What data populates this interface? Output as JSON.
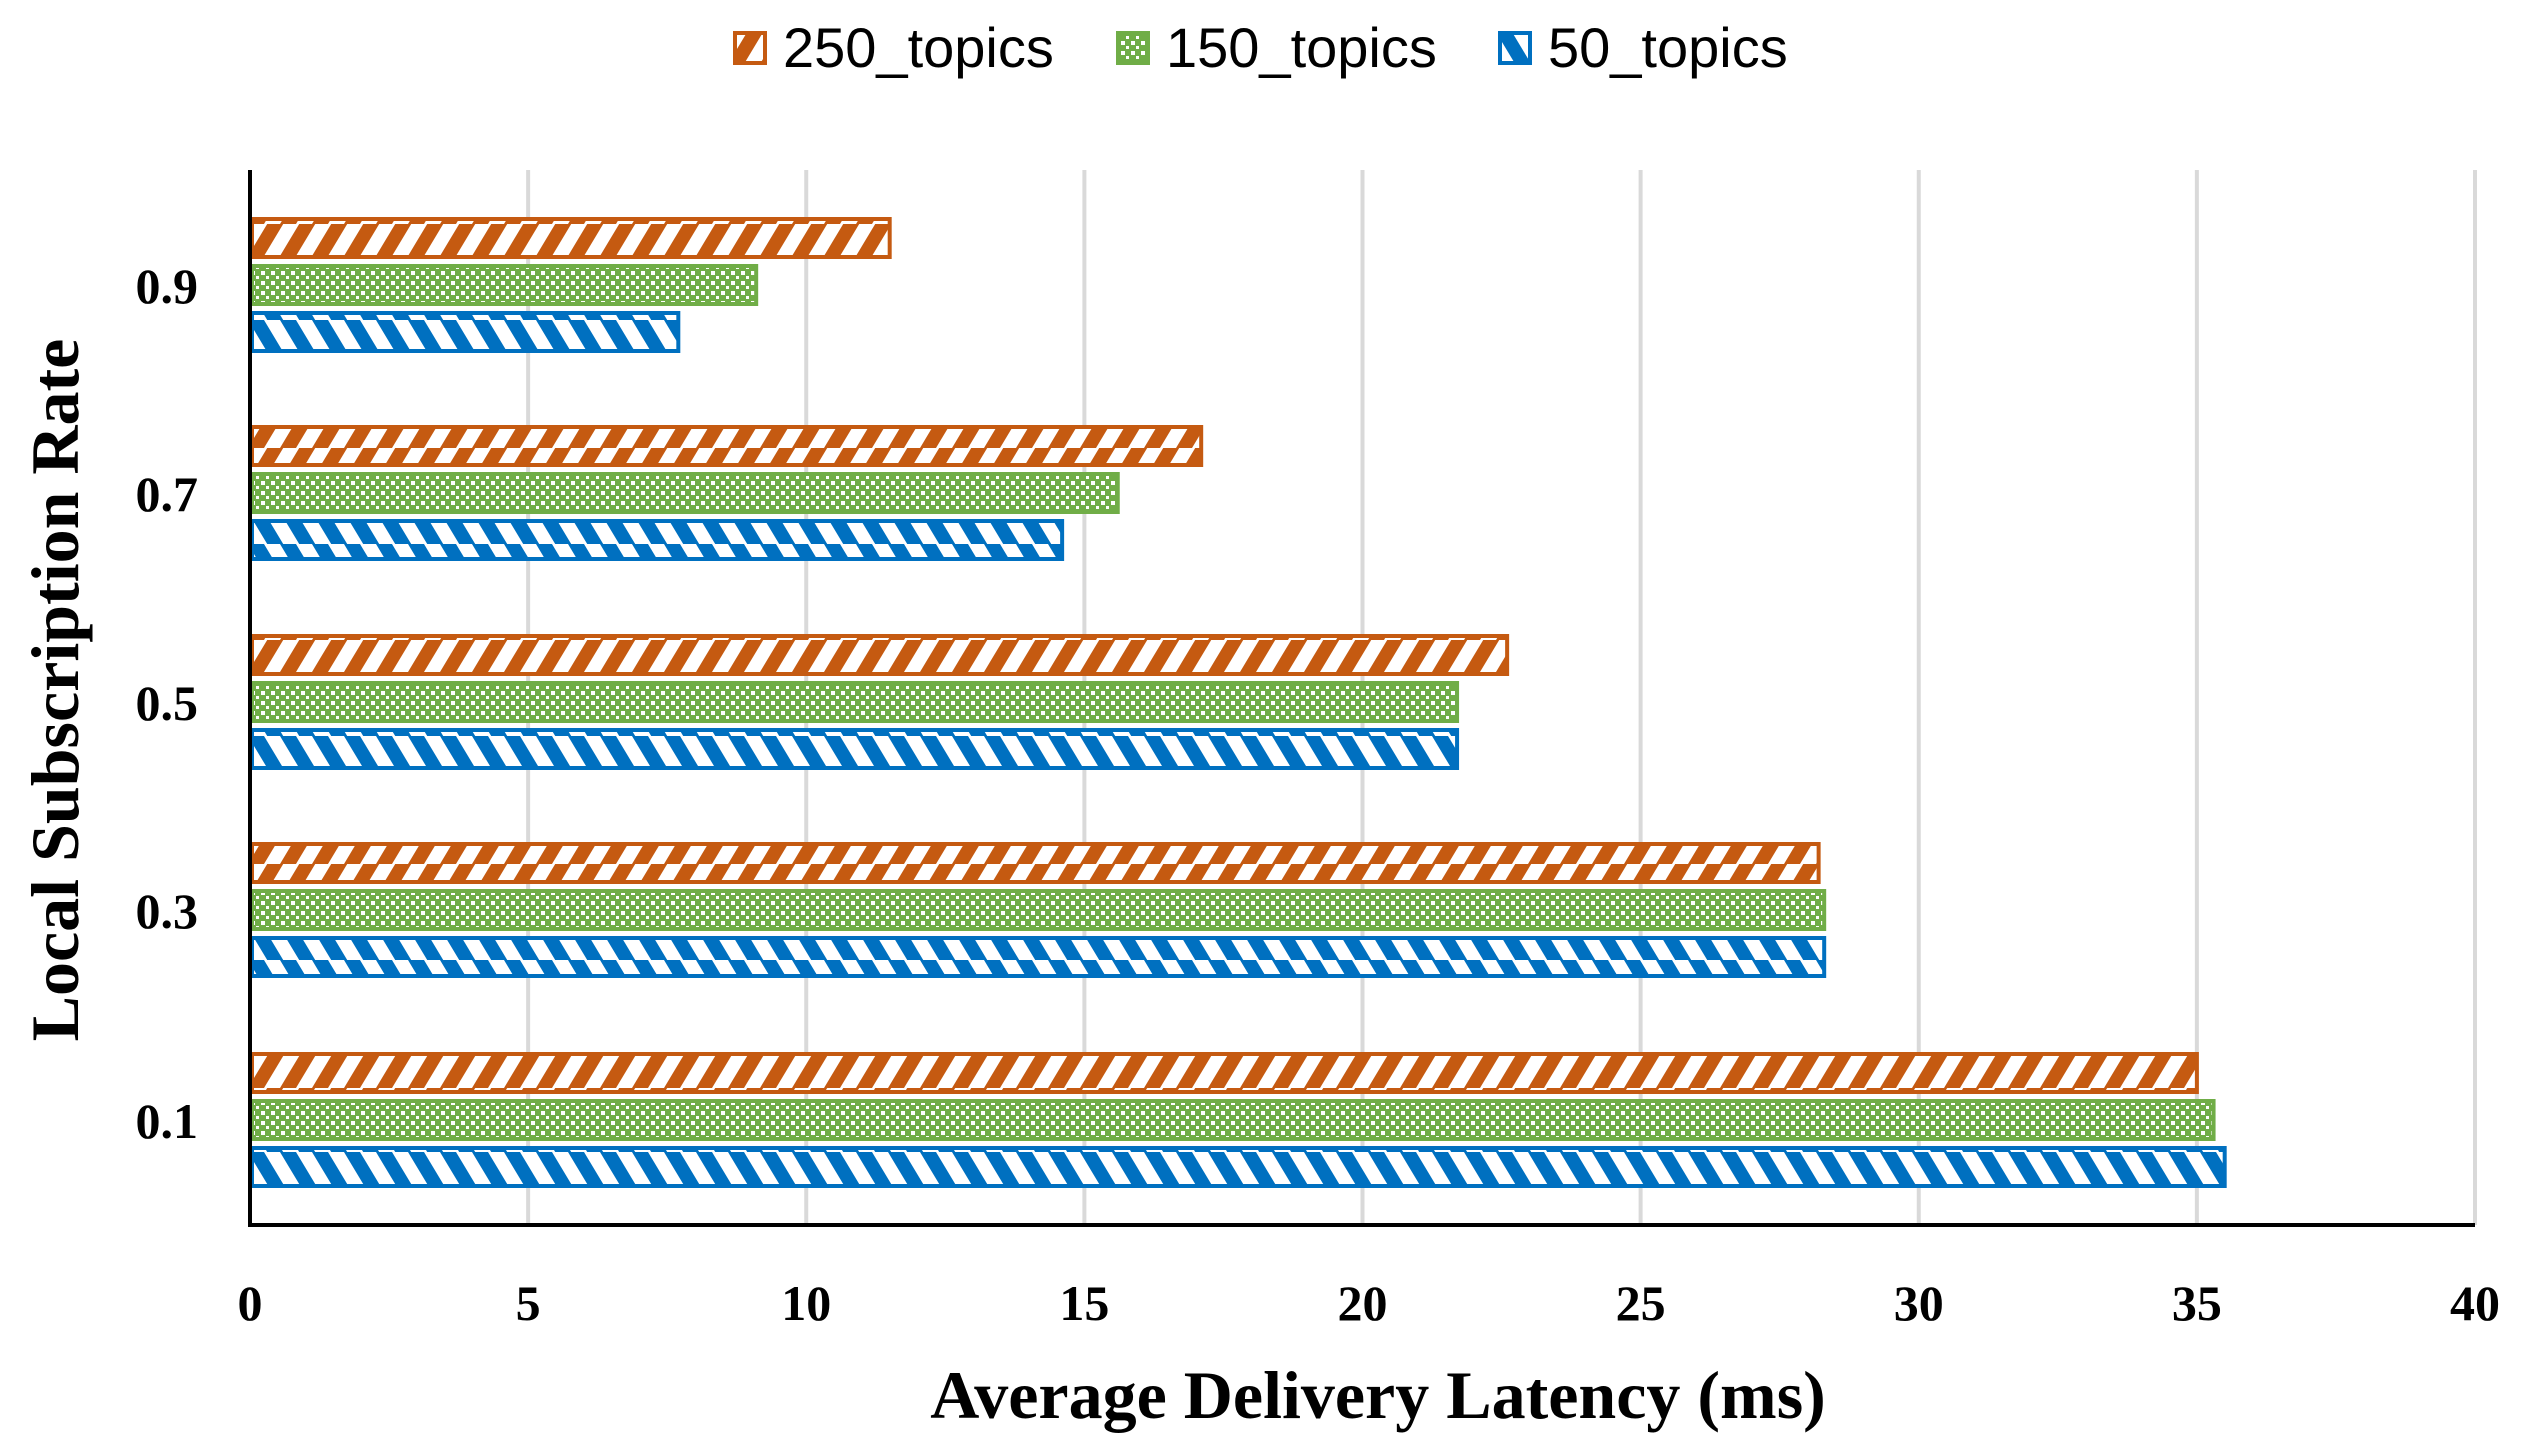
{
  "chart_data": {
    "type": "bar",
    "orientation": "horizontal",
    "title": "",
    "xlabel": "Average Delivery Latency (ms)",
    "ylabel": "Local Subscription Rate",
    "xlim": [
      0,
      40
    ],
    "xticks": [
      "0",
      "5",
      "10",
      "15",
      "20",
      "25",
      "30",
      "35",
      "40"
    ],
    "grid": "vertical",
    "legend_position": "top",
    "categories": [
      "0.1",
      "0.3",
      "0.5",
      "0.7",
      "0.9"
    ],
    "series": [
      {
        "name": "250_topics",
        "color": "#C55A11",
        "pattern": "diagonal-stripes",
        "values": [
          35.0,
          28.2,
          22.6,
          17.1,
          11.5
        ]
      },
      {
        "name": "150_topics",
        "color": "#70AD47",
        "pattern": "checker",
        "values": [
          35.3,
          28.3,
          21.7,
          15.6,
          9.1
        ]
      },
      {
        "name": "50_topics",
        "color": "#0070C0",
        "pattern": "diagonal-stripes-reverse",
        "values": [
          35.5,
          28.3,
          21.7,
          14.6,
          7.7
        ]
      }
    ]
  }
}
